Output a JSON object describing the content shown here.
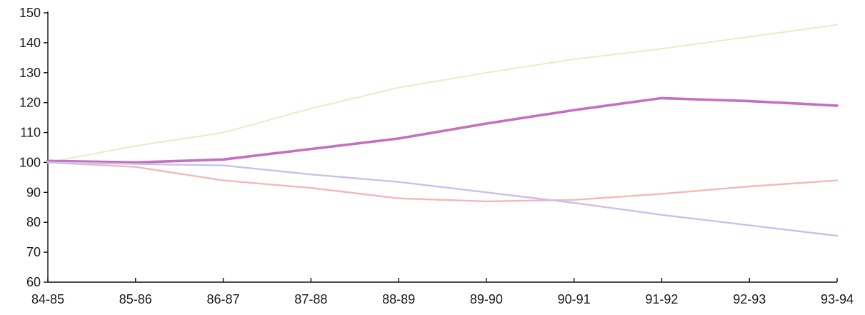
{
  "chart_data": {
    "type": "line",
    "categories": [
      "84-85",
      "85-86",
      "86-87",
      "87-88",
      "88-89",
      "89-90",
      "90-91",
      "91-92",
      "92-93",
      "93-94"
    ],
    "ylim": [
      60,
      150
    ],
    "yticks": [
      60,
      70,
      80,
      90,
      100,
      110,
      120,
      130,
      140,
      150
    ],
    "grid": false,
    "legend": "none",
    "series": [
      {
        "color": "#efe9c8",
        "values": [
          100,
          105.5,
          110,
          118,
          125,
          130,
          134.5,
          138,
          142,
          146
        ]
      },
      {
        "color": "#c56fc0",
        "values": [
          100.5,
          100,
          101,
          104.5,
          108,
          113,
          117.5,
          121.5,
          120.5,
          119
        ]
      },
      {
        "color": "#f4b8b8",
        "values": [
          100,
          98.5,
          94,
          91.5,
          88,
          87,
          87.5,
          89.5,
          92,
          94
        ]
      },
      {
        "color": "#c9c1ec",
        "values": [
          100,
          99.5,
          99,
          96,
          93.5,
          90,
          86.5,
          82.5,
          79,
          75.5
        ]
      }
    ]
  }
}
